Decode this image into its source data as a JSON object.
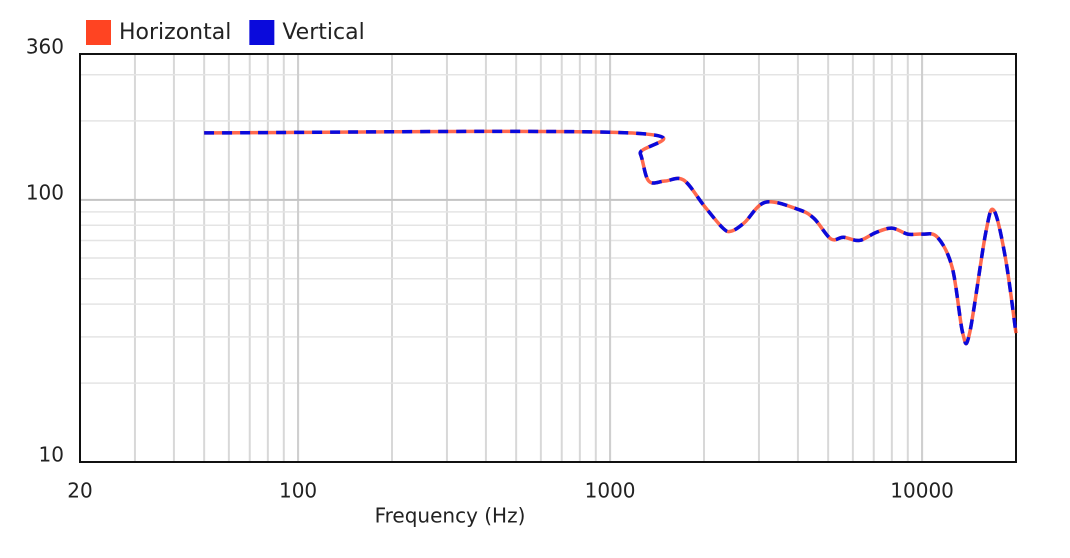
{
  "chart_data": {
    "type": "line",
    "xlabel": "Frequency (Hz)",
    "x": [
      50,
      1150,
      1250,
      1330,
      1500,
      1720,
      2000,
      2300,
      2450,
      2700,
      3150,
      4000,
      4500,
      5100,
      5600,
      6300,
      7100,
      8000,
      9000,
      10000,
      11200,
      12500,
      13500,
      14200,
      16000,
      17000,
      18500,
      20000
    ],
    "series": [
      {
        "name": "Horizontal",
        "color": "#ff4422",
        "values": [
          180,
          180,
          150,
          118,
          118,
          119,
          95,
          78,
          76,
          82,
          98,
          92,
          85,
          71,
          72,
          70,
          75,
          78,
          74,
          74,
          72,
          55,
          31,
          31,
          75,
          91,
          60,
          31
        ]
      },
      {
        "name": "Vertical",
        "color": "#0a0adc",
        "values": [
          180,
          180,
          150,
          118,
          118,
          119,
          95,
          78,
          76,
          82,
          98,
          92,
          85,
          71,
          72,
          70,
          75,
          78,
          74,
          74,
          72,
          55,
          31,
          31,
          75,
          91,
          60,
          31
        ]
      }
    ],
    "xscale": "log",
    "yscale": "log",
    "xlim": [
      20,
      20000
    ],
    "ylim": [
      10,
      360
    ],
    "xticks": [
      20,
      100,
      1000,
      10000
    ],
    "yticks": [
      10,
      100,
      360
    ],
    "grid": true,
    "legend": "top-left"
  }
}
